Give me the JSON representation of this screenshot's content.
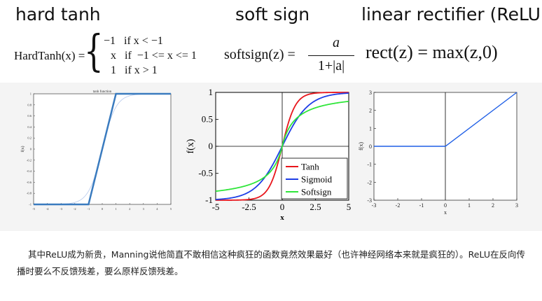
{
  "headings": {
    "hard_tanh": "hard tanh",
    "soft_sign": "soft sign",
    "relu": "linear rectifier (ReLU)"
  },
  "formulas": {
    "hardtanh": {
      "lhs": "HardTanh(x) =",
      "case1": "−1   if x < −1",
      "case2": "x   if  −1 <= x <= 1",
      "case3": "1   if x > 1"
    },
    "softsign": {
      "lhs": "softsign(z) =",
      "numerator": "a",
      "denominator": "1+|a|"
    },
    "relu": {
      "text": "rect(z) = max(z,0)"
    }
  },
  "chart_data": [
    {
      "type": "line",
      "title": "tanh function",
      "ylabel": "f(x)",
      "xlim": [
        -5,
        5
      ],
      "ylim": [
        -1,
        1
      ],
      "xticks": [
        "-5",
        "-4",
        "-3",
        "-2",
        "-1",
        "0",
        "1",
        "2",
        "3",
        "4",
        "5"
      ],
      "yticks": [
        "-1",
        "-0.8",
        "-0.6",
        "-0.4",
        "-0.2",
        "0",
        "0.2",
        "0.4",
        "0.6",
        "0.8",
        "1"
      ],
      "series": [
        {
          "color": "#3a7bbf",
          "x": [
            -5,
            -1,
            1,
            5
          ],
          "y": [
            -1,
            -1,
            1,
            1
          ]
        }
      ]
    },
    {
      "type": "line",
      "xlabel": "x",
      "ylabel": "f(x)",
      "xlim": [
        -5,
        5
      ],
      "ylim": [
        -1,
        1
      ],
      "xticks": [
        "-5",
        "-2.5",
        "0",
        "2.5",
        "5"
      ],
      "yticks": [
        "-1",
        "-0.5",
        "0",
        "0.5",
        "1"
      ],
      "legend": "bottom-right",
      "series": [
        {
          "name": "Tanh",
          "color": "#e8151b",
          "function": "tanh"
        },
        {
          "name": "Sigmoid",
          "color": "#1e3ee6",
          "function": "sigmoid"
        },
        {
          "name": "Softsign",
          "color": "#2fe63a",
          "function": "softsign"
        }
      ]
    },
    {
      "type": "line",
      "xlabel": "x",
      "ylabel": "f(x)",
      "xlim": [
        -3,
        3
      ],
      "ylim": [
        -3,
        3
      ],
      "xticks": [
        "-3",
        "-2",
        "-1",
        "0",
        "1",
        "2",
        "3"
      ],
      "yticks": [
        "-3",
        "-2",
        "-1",
        "0",
        "1",
        "2",
        "3"
      ],
      "series": [
        {
          "color": "#1f5fe6",
          "x": [
            -3,
            0,
            3
          ],
          "y": [
            0,
            0,
            3
          ]
        }
      ]
    }
  ],
  "caption": "其中ReLU成为新贵，Manning说他简直不敢相信这种疯狂的函数竟然效果最好（也许神经网络本来就是疯狂的）。ReLU在反向传播时要么不反馈残差，要么原样反馈残差。"
}
